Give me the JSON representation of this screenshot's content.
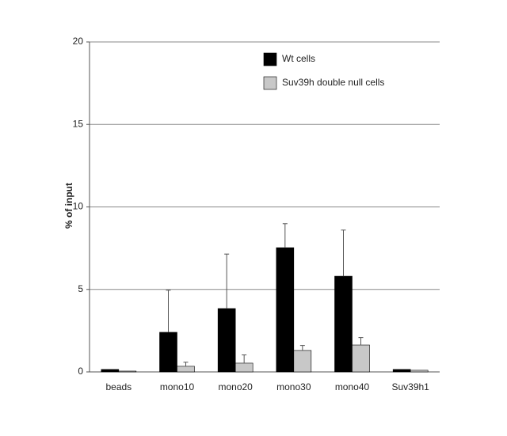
{
  "chart_data": {
    "type": "bar",
    "y_label": "% of input",
    "categories": [
      "beads",
      "mono10",
      "mono20",
      "mono30",
      "mono40",
      "Suv39h1"
    ],
    "series": [
      {
        "name": "Wt cells",
        "color": "#000000",
        "values": [
          0.15,
          2.4,
          3.84,
          7.53,
          5.8,
          0.15
        ],
        "errors": [
          null,
          2.55,
          3.3,
          1.45,
          2.8,
          null
        ]
      },
      {
        "name": "Suv39h double null cells",
        "color": "#c8c8c8",
        "values": [
          0.05,
          0.34,
          0.53,
          1.3,
          1.63,
          0.1
        ],
        "errors": [
          null,
          0.25,
          0.5,
          0.3,
          0.45,
          null
        ]
      }
    ],
    "ylim": [
      0,
      20
    ],
    "yticks": [
      0,
      5,
      10,
      15,
      20
    ],
    "grid": true
  }
}
